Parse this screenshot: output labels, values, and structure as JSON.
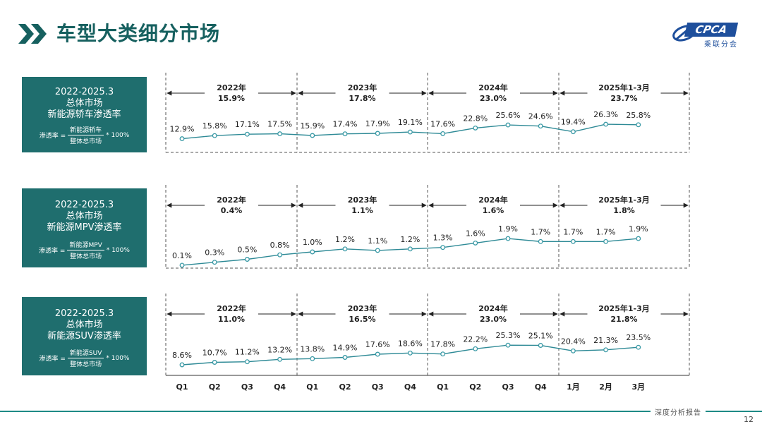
{
  "page": {
    "title": "车型大类细分市场",
    "logo_text": "CPCA",
    "logo_subtext": "乘联分会",
    "footer_text": "深度分析报告",
    "page_number": "12"
  },
  "colors": {
    "accent": "#1f6e6e",
    "line": "#2e8a96",
    "marker": "#3a9aa6",
    "divider": "#555555",
    "footer": "#1f8a86"
  },
  "boxes": [
    {
      "period": "2022-2025.3",
      "scope": "总体市场",
      "metric": "新能源轿车渗透率",
      "formula_label": "渗透率 =",
      "numerator": "新能源轿车",
      "denominator": "整体总市场",
      "multiplier": "* 100%"
    },
    {
      "period": "2022-2025.3",
      "scope": "总体市场",
      "metric": "新能源MPV渗透率",
      "formula_label": "渗透率 =",
      "numerator": "新能源MPV",
      "denominator": "整体总市场",
      "multiplier": "* 100%"
    },
    {
      "period": "2022-2025.3",
      "scope": "总体市场",
      "metric": "新能源SUV渗透率",
      "formula_label": "渗透率 =",
      "numerator": "新能源SUV",
      "denominator": "整体总市场",
      "multiplier": "* 100%"
    }
  ],
  "chart_data": {
    "type": "line",
    "categories": [
      "Q1",
      "Q2",
      "Q3",
      "Q4",
      "Q1",
      "Q2",
      "Q3",
      "Q4",
      "Q1",
      "Q2",
      "Q3",
      "Q4",
      "1月",
      "2月",
      "3月"
    ],
    "period_groups": [
      {
        "label": "2022年",
        "start": 0,
        "end": 3
      },
      {
        "label": "2023年",
        "start": 4,
        "end": 7
      },
      {
        "label": "2024年",
        "start": 8,
        "end": 11
      },
      {
        "label": "2025年1-3月",
        "start": 12,
        "end": 14
      }
    ],
    "panels": [
      {
        "values": [
          12.9,
          15.8,
          17.1,
          17.5,
          15.9,
          17.4,
          17.9,
          19.1,
          17.6,
          22.8,
          25.6,
          24.6,
          19.4,
          26.3,
          25.8
        ],
        "labels": [
          "12.9%",
          "15.8%",
          "17.1%",
          "17.5%",
          "15.9%",
          "17.4%",
          "17.9%",
          "19.1%",
          "17.6%",
          "22.8%",
          "25.6%",
          "24.6%",
          "19.4%",
          "26.3%",
          "25.8%"
        ],
        "period_totals": [
          "15.9%",
          "17.8%",
          "23.0%",
          "23.7%"
        ]
      },
      {
        "values": [
          0.1,
          0.3,
          0.5,
          0.8,
          1.0,
          1.2,
          1.1,
          1.2,
          1.3,
          1.6,
          1.9,
          1.7,
          1.7,
          1.7,
          1.9
        ],
        "labels": [
          "0.1%",
          "0.3%",
          "0.5%",
          "0.8%",
          "1.0%",
          "1.2%",
          "1.1%",
          "1.2%",
          "1.3%",
          "1.6%",
          "1.9%",
          "1.7%",
          "1.7%",
          "1.7%",
          "1.9%"
        ],
        "period_totals": [
          "0.4%",
          "1.1%",
          "1.6%",
          "1.8%"
        ]
      },
      {
        "values": [
          8.6,
          10.7,
          11.2,
          13.2,
          13.8,
          14.9,
          17.6,
          18.6,
          17.8,
          22.2,
          25.3,
          25.1,
          20.4,
          21.3,
          23.5
        ],
        "labels": [
          "8.6%",
          "10.7%",
          "11.2%",
          "13.2%",
          "13.8%",
          "14.9%",
          "17.6%",
          "18.6%",
          "17.8%",
          "22.2%",
          "25.3%",
          "25.1%",
          "20.4%",
          "21.3%",
          "23.5%"
        ],
        "period_totals": [
          "11.0%",
          "16.5%",
          "23.0%",
          "21.8%"
        ]
      }
    ]
  }
}
